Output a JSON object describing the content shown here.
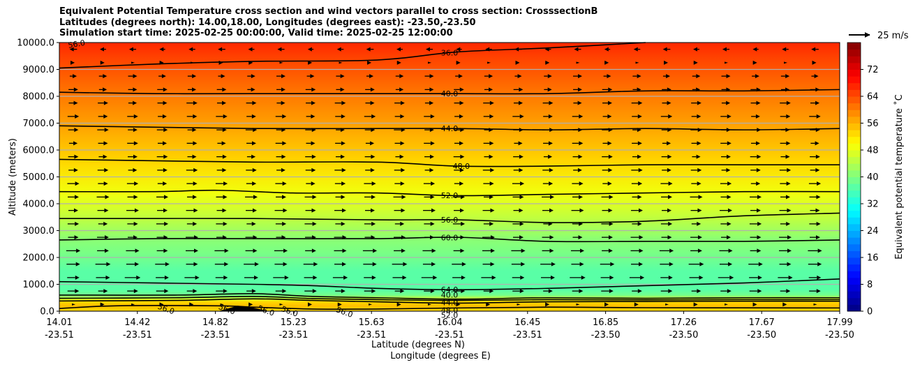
{
  "chart_data": {
    "type": "contourf",
    "title": [
      "Equivalent Potential Temperature cross section and wind vectors parallel to cross section: CrosssectionB",
      "Latitudes (degrees north): 14.00,18.00, Longitudes (degrees east): -23.50,-23.50",
      "Simulation start time: 2025-02-25 00:00:00, Valid time: 2025-02-25 12:00:00"
    ],
    "xlabel_lat": "Latitude (degrees N)",
    "xlabel_lon": "Longitude (degrees E)",
    "ylabel": "Altitude (meters)",
    "x_ticks": [
      {
        "lat": "14.01",
        "lon": "-23.51"
      },
      {
        "lat": "14.42",
        "lon": "-23.51"
      },
      {
        "lat": "14.82",
        "lon": "-23.51"
      },
      {
        "lat": "15.23",
        "lon": "-23.51"
      },
      {
        "lat": "15.63",
        "lon": "-23.51"
      },
      {
        "lat": "16.04",
        "lon": "-23.51"
      },
      {
        "lat": "16.45",
        "lon": "-23.51"
      },
      {
        "lat": "16.85",
        "lon": "-23.50"
      },
      {
        "lat": "17.26",
        "lon": "-23.50"
      },
      {
        "lat": "17.67",
        "lon": "-23.50"
      },
      {
        "lat": "17.99",
        "lon": "-23.50"
      }
    ],
    "x_range": [
      14.01,
      17.99
    ],
    "ylim": [
      0,
      10000
    ],
    "y_ticks": [
      "0.0",
      "1000.0",
      "2000.0",
      "3000.0",
      "4000.0",
      "5000.0",
      "6000.0",
      "7000.0",
      "8000.0",
      "9000.0",
      "10000.0"
    ],
    "grid": "horizontal",
    "colorbar": {
      "label": "Equivalent potential temperature ˚C",
      "ticks": [
        "0",
        "8",
        "16",
        "24",
        "32",
        "40",
        "48",
        "56",
        "64",
        "72"
      ],
      "range": [
        0,
        80
      ],
      "colormap": "jet"
    },
    "theta_e_profile": [
      {
        "alt": 0,
        "value": 53
      },
      {
        "alt": 200,
        "value": 54
      },
      {
        "alt": 350,
        "value": 53
      },
      {
        "alt": 450,
        "value": 46
      },
      {
        "alt": 600,
        "value": 38
      },
      {
        "alt": 800,
        "value": 36
      },
      {
        "alt": 1500,
        "value": 37.5
      },
      {
        "alt": 2000,
        "value": 38.5
      },
      {
        "alt": 2700,
        "value": 40
      },
      {
        "alt": 3450,
        "value": 44
      },
      {
        "alt": 4400,
        "value": 48
      },
      {
        "alt": 5500,
        "value": 52
      },
      {
        "alt": 6800,
        "value": 56
      },
      {
        "alt": 8200,
        "value": 60
      },
      {
        "alt": 9500,
        "value": 64
      },
      {
        "alt": 10000,
        "value": 66
      }
    ],
    "contours": [
      {
        "level": "36.0",
        "points": [
          [
            14.01,
            1100
          ],
          [
            14.5,
            1050
          ],
          [
            15.0,
            1000
          ],
          [
            15.3,
            950
          ],
          [
            15.63,
            850
          ],
          [
            16.04,
            800
          ],
          [
            16.5,
            850
          ],
          [
            17.0,
            950
          ],
          [
            17.5,
            1050
          ],
          [
            17.99,
            1200
          ]
        ]
      },
      {
        "level": "40.0",
        "points": [
          [
            14.01,
            2650
          ],
          [
            14.5,
            2700
          ],
          [
            15.0,
            2700
          ],
          [
            15.63,
            2700
          ],
          [
            16.04,
            2750
          ],
          [
            16.5,
            2600
          ],
          [
            17.0,
            2600
          ],
          [
            17.5,
            2600
          ],
          [
            17.99,
            2650
          ]
        ]
      },
      {
        "level": "44.0",
        "points": [
          [
            14.01,
            3450
          ],
          [
            14.5,
            3450
          ],
          [
            15.0,
            3450
          ],
          [
            15.63,
            3400
          ],
          [
            16.04,
            3400
          ],
          [
            16.5,
            3300
          ],
          [
            17.0,
            3350
          ],
          [
            17.5,
            3550
          ],
          [
            17.99,
            3650
          ]
        ]
      },
      {
        "level": "48.0",
        "points": [
          [
            14.01,
            4450
          ],
          [
            14.5,
            4450
          ],
          [
            14.82,
            4500
          ],
          [
            15.2,
            4400
          ],
          [
            15.63,
            4400
          ],
          [
            16.04,
            4300
          ],
          [
            16.5,
            4350
          ],
          [
            17.0,
            4400
          ],
          [
            17.5,
            4450
          ],
          [
            17.99,
            4450
          ]
        ]
      },
      {
        "level": "52.0",
        "points": [
          [
            14.01,
            5650
          ],
          [
            14.5,
            5600
          ],
          [
            15.0,
            5550
          ],
          [
            15.63,
            5550
          ],
          [
            16.04,
            5400
          ],
          [
            16.5,
            5400
          ],
          [
            17.0,
            5450
          ],
          [
            17.5,
            5450
          ],
          [
            17.99,
            5450
          ]
        ]
      },
      {
        "level": "56.0",
        "points": [
          [
            14.01,
            6900
          ],
          [
            14.5,
            6850
          ],
          [
            15.0,
            6800
          ],
          [
            15.63,
            6800
          ],
          [
            16.04,
            6800
          ],
          [
            16.5,
            6750
          ],
          [
            17.0,
            6800
          ],
          [
            17.5,
            6750
          ],
          [
            17.99,
            6800
          ]
        ]
      },
      {
        "level": "60.0",
        "points": [
          [
            14.01,
            8150
          ],
          [
            14.5,
            8100
          ],
          [
            15.0,
            8100
          ],
          [
            15.63,
            8100
          ],
          [
            16.04,
            8100
          ],
          [
            16.5,
            8100
          ],
          [
            17.0,
            8200
          ],
          [
            17.5,
            8200
          ],
          [
            17.99,
            8250
          ]
        ]
      },
      {
        "level": "64.0",
        "points": [
          [
            14.01,
            9050
          ],
          [
            14.5,
            9200
          ],
          [
            15.0,
            9300
          ],
          [
            15.63,
            9350
          ],
          [
            16.04,
            9650
          ],
          [
            16.5,
            9800
          ],
          [
            17.0,
            10000
          ]
        ]
      },
      {
        "level": "44.0",
        "points": [
          [
            14.01,
            600
          ],
          [
            14.6,
            600
          ],
          [
            15.0,
            650
          ],
          [
            15.3,
            550
          ],
          [
            15.63,
            500
          ],
          [
            16.04,
            450
          ],
          [
            16.5,
            500
          ],
          [
            17.0,
            480
          ],
          [
            17.5,
            500
          ],
          [
            17.99,
            500
          ]
        ]
      },
      {
        "level": "48.0",
        "points": [
          [
            14.01,
            480
          ],
          [
            14.6,
            500
          ],
          [
            15.0,
            550
          ],
          [
            15.3,
            470
          ],
          [
            15.63,
            430
          ],
          [
            16.04,
            400
          ],
          [
            16.5,
            430
          ],
          [
            17.0,
            420
          ],
          [
            17.5,
            430
          ],
          [
            17.99,
            430
          ]
        ]
      },
      {
        "level": "52.0",
        "points": [
          [
            14.01,
            380
          ],
          [
            14.6,
            400
          ],
          [
            15.0,
            460
          ],
          [
            15.3,
            400
          ],
          [
            15.63,
            350
          ],
          [
            16.04,
            300
          ],
          [
            16.5,
            350
          ],
          [
            17.0,
            360
          ],
          [
            17.5,
            370
          ],
          [
            17.99,
            370
          ]
        ]
      },
      {
        "level": "56.0",
        "points": [
          [
            14.01,
            100
          ],
          [
            14.3,
            200
          ],
          [
            14.82,
            200
          ],
          [
            15.0,
            150
          ],
          [
            15.3,
            80
          ],
          [
            15.63,
            80
          ],
          [
            16.04,
            120
          ],
          [
            16.5,
            150
          ],
          [
            17.0,
            130
          ],
          [
            17.99,
            120
          ]
        ]
      }
    ],
    "contour_labels": [
      "64.0",
      "60.0",
      "56.0",
      "52.0",
      "48.0",
      "44.0",
      "40.0",
      "36.0",
      "40.0",
      "44.0",
      "48.0",
      "52.0",
      "56.0",
      "56.0",
      "56.0",
      "56.0",
      "56.0",
      "56.0",
      "68.0"
    ],
    "terrain": [
      [
        14.82,
        0
      ],
      [
        14.92,
        200
      ],
      [
        15.0,
        130
      ],
      [
        15.08,
        0
      ]
    ],
    "quiver_key": "25 m/s",
    "wind_u_profile_ms": [
      {
        "alt": 100,
        "u": 0
      },
      {
        "alt": 500,
        "u": 8
      },
      {
        "alt": 1000,
        "u": 15
      },
      {
        "alt": 2000,
        "u": 14
      },
      {
        "alt": 3000,
        "u": 11
      },
      {
        "alt": 4000,
        "u": 12
      },
      {
        "alt": 5000,
        "u": 11
      },
      {
        "alt": 6000,
        "u": 10
      },
      {
        "alt": 7000,
        "u": 11
      },
      {
        "alt": 8000,
        "u": 10
      },
      {
        "alt": 9000,
        "u": 8
      },
      {
        "alt": 9800,
        "u": -8
      }
    ]
  }
}
